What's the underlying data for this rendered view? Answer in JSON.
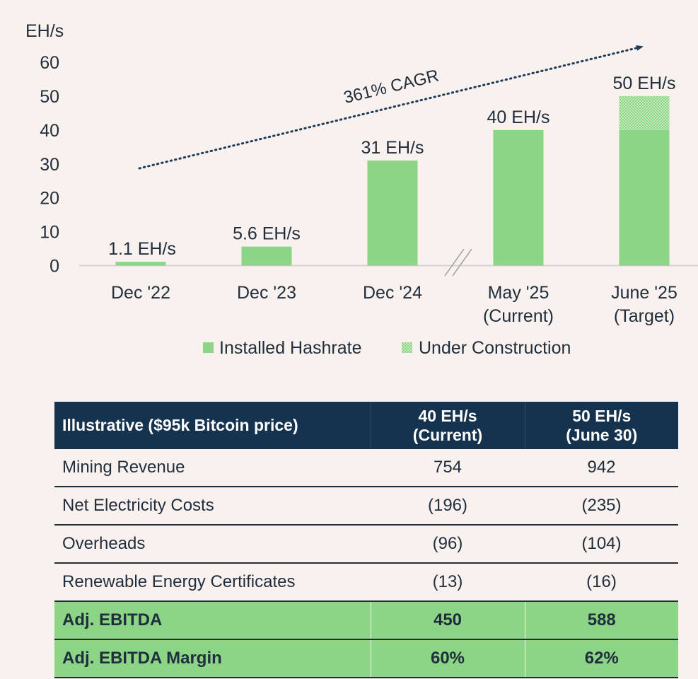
{
  "chart_data": {
    "type": "bar",
    "ylabel": "EH/s",
    "ylim": [
      0,
      60
    ],
    "yticks": [
      0,
      10,
      20,
      30,
      40,
      50,
      60
    ],
    "categories": [
      [
        "Dec '22"
      ],
      [
        "Dec '23"
      ],
      [
        "Dec '24"
      ],
      [
        "May '25",
        "(Current)"
      ],
      [
        "June '25",
        "(Target)"
      ]
    ],
    "series": [
      {
        "name": "Installed Hashrate",
        "values": [
          1.1,
          5.6,
          31,
          40,
          40
        ]
      },
      {
        "name": "Under Construction",
        "values": [
          0,
          0,
          0,
          0,
          10
        ]
      }
    ],
    "data_labels": [
      "1.1 EH/s",
      "5.6 EH/s",
      "31 EH/s",
      "40 EH/s",
      "50 EH/s"
    ],
    "annotation": "361% CAGR",
    "axis_break_after_index": 2,
    "legend": [
      {
        "label": "Installed Hashrate",
        "style": "solid"
      },
      {
        "label": "Under Construction",
        "style": "hatched"
      }
    ],
    "legend_position": "bottom",
    "grid": false
  },
  "colors": {
    "bar": "#8cd586",
    "bar_pattern": "#c3ebbc",
    "text": "#1f2d3d",
    "arrow": "#1f3a5a",
    "axis": "#d8d3cf",
    "header_bg": "#15324f",
    "highlight_bg": "#8cd586",
    "background": "#f9f1ee"
  },
  "table": {
    "header": {
      "label": "Illustrative ($95k Bitcoin price)",
      "col1": [
        "40 EH/s",
        "(Current)"
      ],
      "col2": [
        "50 EH/s",
        "(June 30)"
      ]
    },
    "rows": [
      {
        "label": "Mining Revenue",
        "v1": "754",
        "v2": "942"
      },
      {
        "label": "Net Electricity Costs",
        "v1": "(196)",
        "v2": "(235)"
      },
      {
        "label": "Overheads",
        "v1": "(96)",
        "v2": "(104)"
      },
      {
        "label": "Renewable Energy Certificates",
        "v1": "(13)",
        "v2": "(16)"
      }
    ],
    "highlight_rows": [
      {
        "label": "Adj. EBITDA",
        "v1": "450",
        "v2": "588"
      },
      {
        "label": "Adj. EBITDA Margin",
        "v1": "60%",
        "v2": "62%"
      }
    ]
  }
}
